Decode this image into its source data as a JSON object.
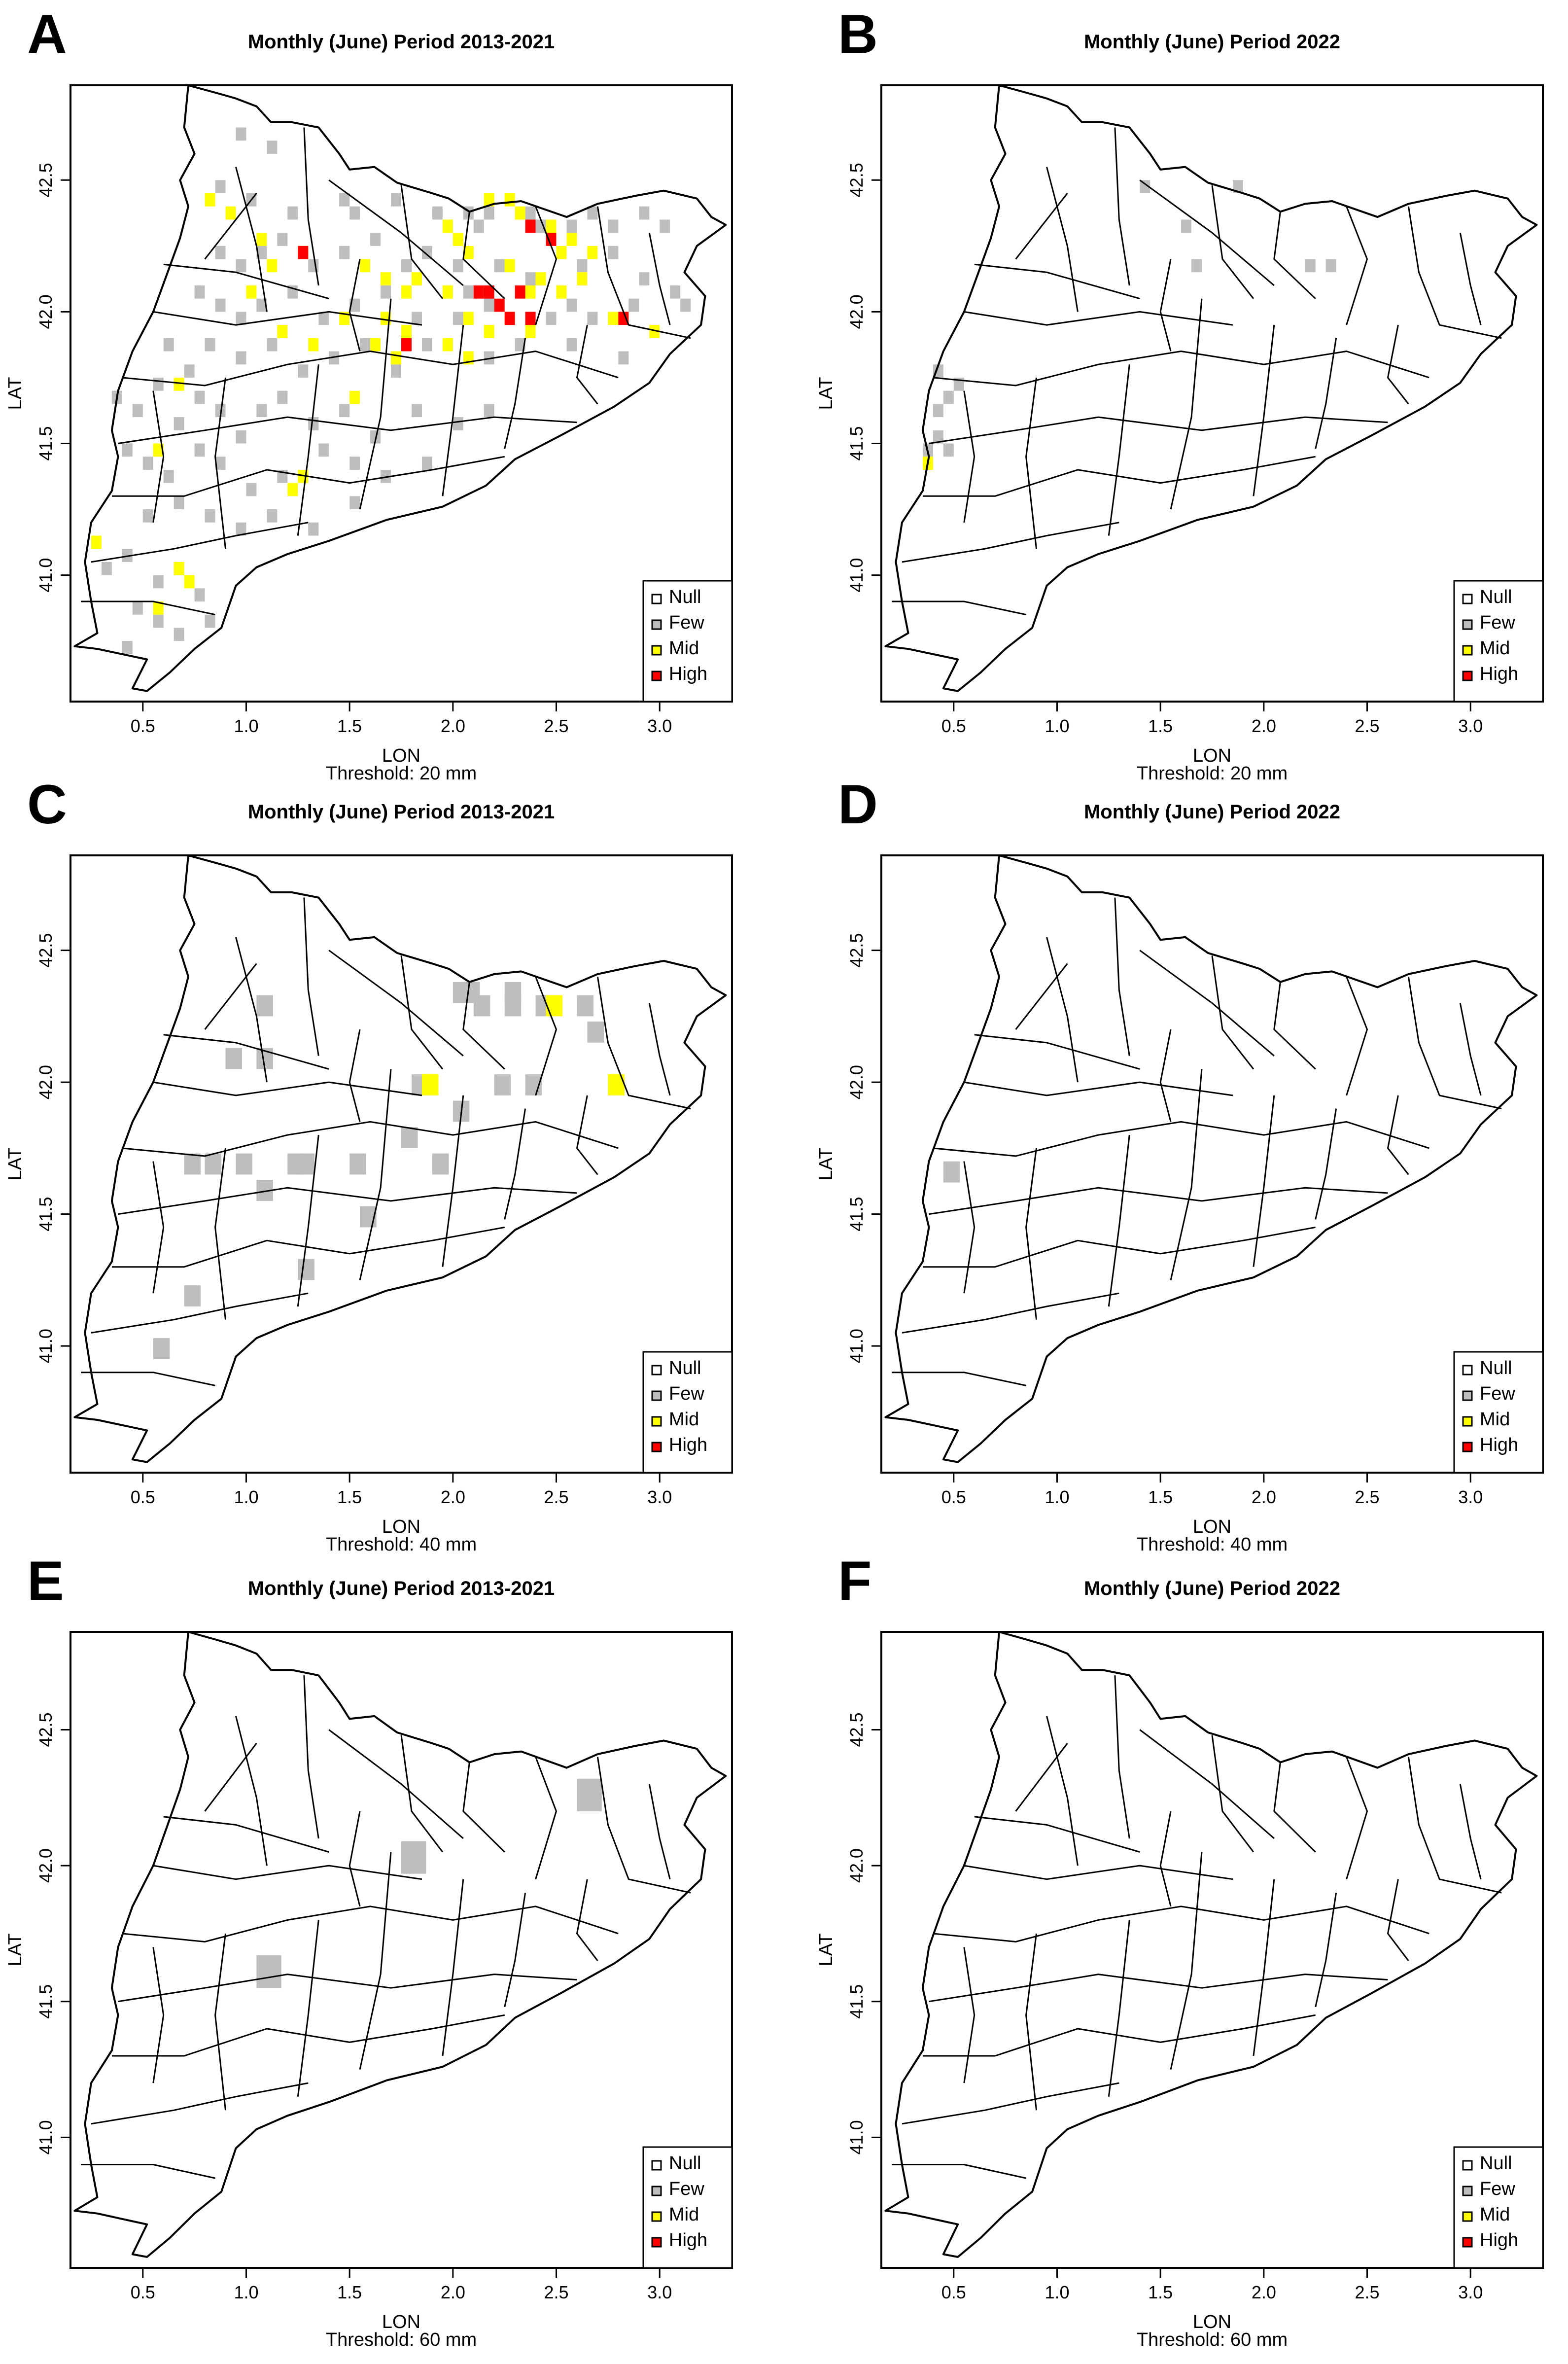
{
  "figure": {
    "panels": [
      {
        "letter": "A",
        "title": "Monthly (June) Period 2013-2021",
        "threshold_text": "Threshold: 20 mm"
      },
      {
        "letter": "B",
        "title": "Monthly (June) Period 2022",
        "threshold_text": "Threshold: 20 mm"
      },
      {
        "letter": "C",
        "title": "Monthly (June) Period 2013-2021",
        "threshold_text": "Threshold: 40 mm"
      },
      {
        "letter": "D",
        "title": "Monthly (June) Period 2022",
        "threshold_text": "Threshold: 40 mm"
      },
      {
        "letter": "E",
        "title": "Monthly (June) Period 2013-2021",
        "threshold_text": "Threshold: 60 mm"
      },
      {
        "letter": "F",
        "title": "Monthly (June) Period 2022",
        "threshold_text": "Threshold: 60 mm"
      }
    ],
    "xlabel": "LON",
    "ylabel": "LAT",
    "legend": [
      {
        "label": "Null",
        "color": "#ffffff"
      },
      {
        "label": "Few",
        "color": "#bebebe"
      },
      {
        "label": "Mid",
        "color": "#ffff00"
      },
      {
        "label": "High",
        "color": "#ff0000"
      }
    ]
  },
  "chart_data": [
    {
      "type": "heatmap",
      "title": "Monthly (June) Period 2013-2021",
      "xlabel": "LON",
      "ylabel": "LAT",
      "xlim": [
        0.15,
        3.35
      ],
      "ylim": [
        40.52,
        42.86
      ],
      "xticks": [
        "0.5",
        "1.0",
        "1.5",
        "2.0",
        "2.5",
        "3.0"
      ],
      "yticks": [
        "41.0",
        "41.5",
        "42.0",
        "42.5"
      ],
      "threshold": "20 mm",
      "cell_size": [
        0.05,
        0.05
      ],
      "cells": {
        "few": [
          [
            0.95,
            42.65
          ],
          [
            1.1,
            42.6
          ],
          [
            0.85,
            42.45
          ],
          [
            1.0,
            42.4
          ],
          [
            1.2,
            42.35
          ],
          [
            1.45,
            42.4
          ],
          [
            1.5,
            42.35
          ],
          [
            1.7,
            42.4
          ],
          [
            1.9,
            42.35
          ],
          [
            2.05,
            42.35
          ],
          [
            2.1,
            42.3
          ],
          [
            2.15,
            42.35
          ],
          [
            2.35,
            42.35
          ],
          [
            2.4,
            42.3
          ],
          [
            2.55,
            42.3
          ],
          [
            2.65,
            42.35
          ],
          [
            2.75,
            42.3
          ],
          [
            2.9,
            42.35
          ],
          [
            3.0,
            42.3
          ],
          [
            0.85,
            42.2
          ],
          [
            0.95,
            42.15
          ],
          [
            1.05,
            42.2
          ],
          [
            1.15,
            42.25
          ],
          [
            1.3,
            42.15
          ],
          [
            1.45,
            42.2
          ],
          [
            1.6,
            42.25
          ],
          [
            1.75,
            42.15
          ],
          [
            1.85,
            42.2
          ],
          [
            2.0,
            42.15
          ],
          [
            2.2,
            42.15
          ],
          [
            2.35,
            42.1
          ],
          [
            2.6,
            42.15
          ],
          [
            2.75,
            42.2
          ],
          [
            2.9,
            42.1
          ],
          [
            3.05,
            42.05
          ],
          [
            0.75,
            42.05
          ],
          [
            0.85,
            42.0
          ],
          [
            0.95,
            41.95
          ],
          [
            1.05,
            42.0
          ],
          [
            1.2,
            42.05
          ],
          [
            1.35,
            41.95
          ],
          [
            1.5,
            42.0
          ],
          [
            1.65,
            42.05
          ],
          [
            1.8,
            41.95
          ],
          [
            2.0,
            41.95
          ],
          [
            2.05,
            42.05
          ],
          [
            2.15,
            42.0
          ],
          [
            2.45,
            41.95
          ],
          [
            2.55,
            42.0
          ],
          [
            2.65,
            41.95
          ],
          [
            2.85,
            42.0
          ],
          [
            3.1,
            42.0
          ],
          [
            0.6,
            41.85
          ],
          [
            0.7,
            41.75
          ],
          [
            0.8,
            41.85
          ],
          [
            0.95,
            41.8
          ],
          [
            1.1,
            41.85
          ],
          [
            1.25,
            41.75
          ],
          [
            1.4,
            41.8
          ],
          [
            1.55,
            41.85
          ],
          [
            1.7,
            41.75
          ],
          [
            1.85,
            41.85
          ],
          [
            2.15,
            41.8
          ],
          [
            2.3,
            41.85
          ],
          [
            2.55,
            41.85
          ],
          [
            2.8,
            41.8
          ],
          [
            0.35,
            41.65
          ],
          [
            0.45,
            41.6
          ],
          [
            0.55,
            41.7
          ],
          [
            0.65,
            41.55
          ],
          [
            0.75,
            41.65
          ],
          [
            0.85,
            41.6
          ],
          [
            0.95,
            41.5
          ],
          [
            1.05,
            41.6
          ],
          [
            1.15,
            41.65
          ],
          [
            1.3,
            41.55
          ],
          [
            1.45,
            41.6
          ],
          [
            1.6,
            41.5
          ],
          [
            1.8,
            41.6
          ],
          [
            2.0,
            41.55
          ],
          [
            2.15,
            41.6
          ],
          [
            0.4,
            41.45
          ],
          [
            0.5,
            41.4
          ],
          [
            0.6,
            41.35
          ],
          [
            0.75,
            41.45
          ],
          [
            0.85,
            41.4
          ],
          [
            1.0,
            41.3
          ],
          [
            1.15,
            41.35
          ],
          [
            1.35,
            41.45
          ],
          [
            1.5,
            41.4
          ],
          [
            1.65,
            41.35
          ],
          [
            1.85,
            41.4
          ],
          [
            0.5,
            41.2
          ],
          [
            0.65,
            41.25
          ],
          [
            0.8,
            41.2
          ],
          [
            0.95,
            41.15
          ],
          [
            1.1,
            41.2
          ],
          [
            1.3,
            41.15
          ],
          [
            1.5,
            41.25
          ],
          [
            0.3,
            41.0
          ],
          [
            0.4,
            41.05
          ],
          [
            0.55,
            40.95
          ],
          [
            0.65,
            41.0
          ],
          [
            0.75,
            40.9
          ],
          [
            0.45,
            40.85
          ],
          [
            0.55,
            40.8
          ],
          [
            0.65,
            40.75
          ],
          [
            0.8,
            40.8
          ],
          [
            0.4,
            40.7
          ]
        ],
        "mid": [
          [
            0.8,
            42.4
          ],
          [
            0.9,
            42.35
          ],
          [
            1.05,
            42.25
          ],
          [
            1.1,
            42.15
          ],
          [
            1.25,
            42.2
          ],
          [
            1.55,
            42.15
          ],
          [
            1.65,
            42.1
          ],
          [
            1.75,
            42.05
          ],
          [
            1.8,
            42.1
          ],
          [
            1.95,
            42.3
          ],
          [
            2.0,
            42.25
          ],
          [
            2.05,
            42.2
          ],
          [
            2.15,
            42.4
          ],
          [
            2.25,
            42.4
          ],
          [
            2.3,
            42.35
          ],
          [
            2.45,
            42.3
          ],
          [
            2.55,
            42.25
          ],
          [
            2.65,
            42.2
          ],
          [
            2.25,
            42.15
          ],
          [
            2.35,
            42.05
          ],
          [
            2.4,
            42.1
          ],
          [
            2.5,
            42.05
          ],
          [
            2.6,
            42.1
          ],
          [
            1.95,
            42.05
          ],
          [
            2.05,
            41.95
          ],
          [
            2.15,
            41.9
          ],
          [
            2.25,
            41.95
          ],
          [
            2.35,
            41.9
          ],
          [
            1.65,
            41.95
          ],
          [
            1.75,
            41.9
          ],
          [
            1.6,
            41.85
          ],
          [
            1.7,
            41.8
          ],
          [
            1.95,
            41.85
          ],
          [
            2.05,
            41.8
          ],
          [
            1.0,
            42.05
          ],
          [
            1.15,
            41.9
          ],
          [
            1.3,
            41.85
          ],
          [
            1.45,
            41.95
          ],
          [
            0.65,
            41.7
          ],
          [
            1.5,
            41.65
          ],
          [
            0.55,
            41.45
          ],
          [
            1.2,
            41.3
          ],
          [
            1.25,
            41.35
          ],
          [
            0.65,
            41.0
          ],
          [
            0.7,
            40.95
          ],
          [
            0.55,
            40.85
          ],
          [
            0.25,
            41.1
          ],
          [
            2.5,
            42.2
          ],
          [
            2.75,
            41.95
          ],
          [
            2.95,
            41.9
          ]
        ],
        "high": [
          [
            1.25,
            42.2
          ],
          [
            2.1,
            42.05
          ],
          [
            2.15,
            42.05
          ],
          [
            2.2,
            42.0
          ],
          [
            2.3,
            42.05
          ],
          [
            2.25,
            41.95
          ],
          [
            2.35,
            41.95
          ],
          [
            2.45,
            42.25
          ],
          [
            2.35,
            42.3
          ],
          [
            2.8,
            41.95
          ],
          [
            1.75,
            41.85
          ]
        ]
      }
    },
    {
      "type": "heatmap",
      "title": "Monthly (June) Period 2022",
      "xlabel": "LON",
      "ylabel": "LAT",
      "xlim": [
        0.15,
        3.35
      ],
      "ylim": [
        40.52,
        42.86
      ],
      "xticks": [
        "0.5",
        "1.0",
        "1.5",
        "2.0",
        "2.5",
        "3.0"
      ],
      "yticks": [
        "41.0",
        "41.5",
        "42.0",
        "42.5"
      ],
      "threshold": "20 mm",
      "cell_size": [
        0.05,
        0.05
      ],
      "cells": {
        "few": [
          [
            1.4,
            42.45
          ],
          [
            1.6,
            42.3
          ],
          [
            1.65,
            42.15
          ],
          [
            1.85,
            42.45
          ],
          [
            2.2,
            42.15
          ],
          [
            2.3,
            42.15
          ],
          [
            0.4,
            41.75
          ],
          [
            0.5,
            41.7
          ],
          [
            0.45,
            41.65
          ],
          [
            0.4,
            41.6
          ],
          [
            0.45,
            41.45
          ],
          [
            0.4,
            41.5
          ],
          [
            0.35,
            41.45
          ]
        ],
        "mid": [
          [
            0.35,
            41.4
          ]
        ],
        "high": []
      }
    },
    {
      "type": "heatmap",
      "title": "Monthly (June) Period 2013-2021",
      "xlabel": "LON",
      "ylabel": "LAT",
      "xlim": [
        0.15,
        3.35
      ],
      "ylim": [
        40.52,
        42.86
      ],
      "xticks": [
        "0.5",
        "1.0",
        "1.5",
        "2.0",
        "2.5",
        "3.0"
      ],
      "yticks": [
        "41.0",
        "41.5",
        "42.0",
        "42.5"
      ],
      "threshold": "40 mm",
      "cell_size": [
        0.08,
        0.08
      ],
      "cells": {
        "few": [
          [
            1.05,
            42.25
          ],
          [
            0.9,
            42.05
          ],
          [
            1.05,
            42.05
          ],
          [
            2.0,
            42.3
          ],
          [
            2.1,
            42.25
          ],
          [
            2.25,
            42.25
          ],
          [
            2.4,
            42.25
          ],
          [
            2.6,
            42.25
          ],
          [
            2.65,
            42.15
          ],
          [
            2.0,
            41.85
          ],
          [
            2.2,
            41.95
          ],
          [
            2.35,
            41.95
          ],
          [
            1.75,
            41.75
          ],
          [
            1.5,
            41.65
          ],
          [
            1.25,
            41.65
          ],
          [
            0.95,
            41.65
          ],
          [
            0.7,
            41.65
          ],
          [
            0.8,
            41.65
          ],
          [
            1.05,
            41.55
          ],
          [
            1.2,
            41.65
          ],
          [
            1.9,
            41.65
          ],
          [
            1.55,
            41.45
          ],
          [
            1.25,
            41.25
          ],
          [
            0.7,
            41.15
          ],
          [
            0.55,
            40.95
          ],
          [
            1.8,
            41.95
          ],
          [
            2.05,
            42.3
          ],
          [
            2.25,
            42.3
          ]
        ],
        "mid": [
          [
            1.85,
            41.95
          ],
          [
            2.45,
            42.25
          ],
          [
            2.75,
            41.95
          ]
        ],
        "high": []
      }
    },
    {
      "type": "heatmap",
      "title": "Monthly (June) Period 2022",
      "xlabel": "LON",
      "ylabel": "LAT",
      "xlim": [
        0.15,
        3.35
      ],
      "ylim": [
        40.52,
        42.86
      ],
      "xticks": [
        "0.5",
        "1.0",
        "1.5",
        "2.0",
        "2.5",
        "3.0"
      ],
      "yticks": [
        "41.0",
        "41.5",
        "42.0",
        "42.5"
      ],
      "threshold": "40 mm",
      "cell_size": [
        0.08,
        0.08
      ],
      "cells": {
        "few": [
          [
            0.45,
            41.62
          ]
        ],
        "mid": [],
        "high": []
      }
    },
    {
      "type": "heatmap",
      "title": "Monthly (June) Period 2013-2021",
      "xlabel": "LON",
      "ylabel": "LAT",
      "xlim": [
        0.15,
        3.35
      ],
      "ylim": [
        40.52,
        42.86
      ],
      "xticks": [
        "0.5",
        "1.0",
        "1.5",
        "2.0",
        "2.5",
        "3.0"
      ],
      "yticks": [
        "41.0",
        "41.5",
        "42.0",
        "42.5"
      ],
      "threshold": "60 mm",
      "cell_size": [
        0.12,
        0.12
      ],
      "cells": {
        "few": [
          [
            2.6,
            42.2
          ],
          [
            1.75,
            41.97
          ],
          [
            1.05,
            41.55
          ]
        ],
        "mid": [],
        "high": []
      }
    },
    {
      "type": "heatmap",
      "title": "Monthly (June) Period 2022",
      "xlabel": "LON",
      "ylabel": "LAT",
      "xlim": [
        0.15,
        3.35
      ],
      "ylim": [
        40.52,
        42.86
      ],
      "xticks": [
        "0.5",
        "1.0",
        "1.5",
        "2.0",
        "2.5",
        "3.0"
      ],
      "yticks": [
        "41.0",
        "41.5",
        "42.0",
        "42.5"
      ],
      "threshold": "60 mm",
      "cell_size": [
        0.12,
        0.12
      ],
      "cells": {
        "few": [],
        "mid": [],
        "high": []
      }
    }
  ]
}
